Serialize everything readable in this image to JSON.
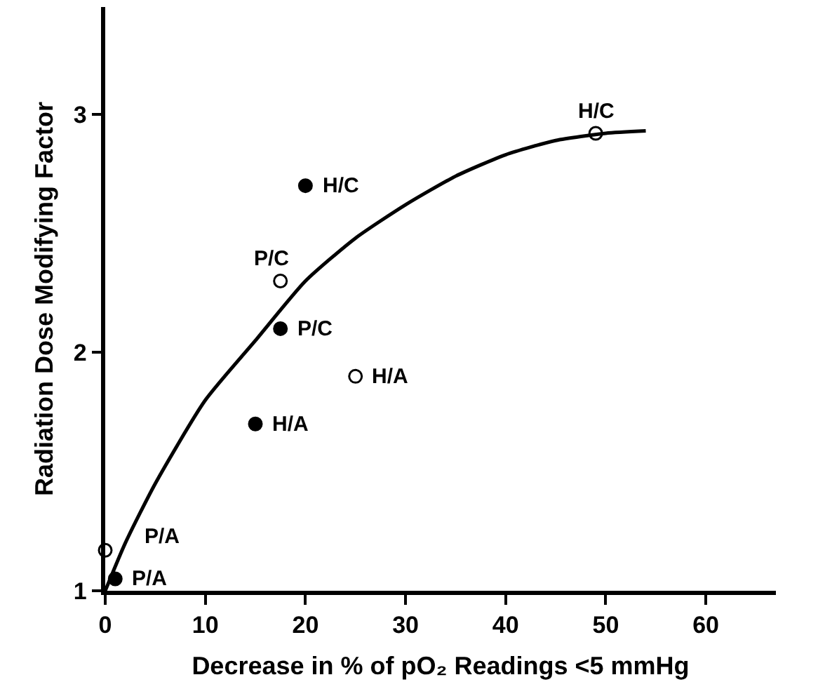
{
  "chart_data": {
    "type": "scatter",
    "xlabel": "Decrease in % of pO₂ Readings <5 mmHg",
    "ylabel": "Radiation Dose Modifying Factor",
    "xlim": [
      0,
      67
    ],
    "xticks": [
      0,
      10,
      20,
      30,
      40,
      50,
      60
    ],
    "ylim": [
      1,
      3.45
    ],
    "yticks": [
      1,
      2,
      3
    ],
    "grid": false,
    "series": [
      {
        "color": "#000000",
        "marker": "circle",
        "x": [
          20,
          17.5,
          15,
          1
        ],
        "values": [
          2.7,
          2.1,
          1.7,
          1.05
        ]
      },
      {
        "color": "#ffffff",
        "marker": "circle",
        "x": [
          49,
          17.5,
          25,
          0
        ],
        "values": [
          2.92,
          2.3,
          1.9,
          1.17
        ]
      },
      {
        "type": "line",
        "color": "#000000",
        "x": [
          0,
          2,
          5,
          10,
          15,
          20,
          25,
          30,
          35,
          40,
          45,
          50,
          54
        ],
        "values": [
          1,
          1.2,
          1.45,
          1.8,
          2.05,
          2.3,
          2.48,
          2.62,
          2.74,
          2.83,
          2.89,
          2.92,
          2.93
        ]
      }
    ],
    "annotations": [
      {
        "text": "H/C",
        "x": 20,
        "y": 2.7
      },
      {
        "text": "P/C",
        "x": 17.5,
        "y": 2.1
      },
      {
        "text": "H/A",
        "x": 15,
        "y": 1.7
      },
      {
        "text": "P/A",
        "x": 1,
        "y": 1.05
      },
      {
        "text": "H/C",
        "x": 49,
        "y": 2.92
      },
      {
        "text": "P/C",
        "x": 17.5,
        "y": 2.3
      },
      {
        "text": "H/A",
        "x": 25,
        "y": 1.9
      },
      {
        "text": "P/A",
        "x": 0,
        "y": 1.17
      }
    ]
  }
}
